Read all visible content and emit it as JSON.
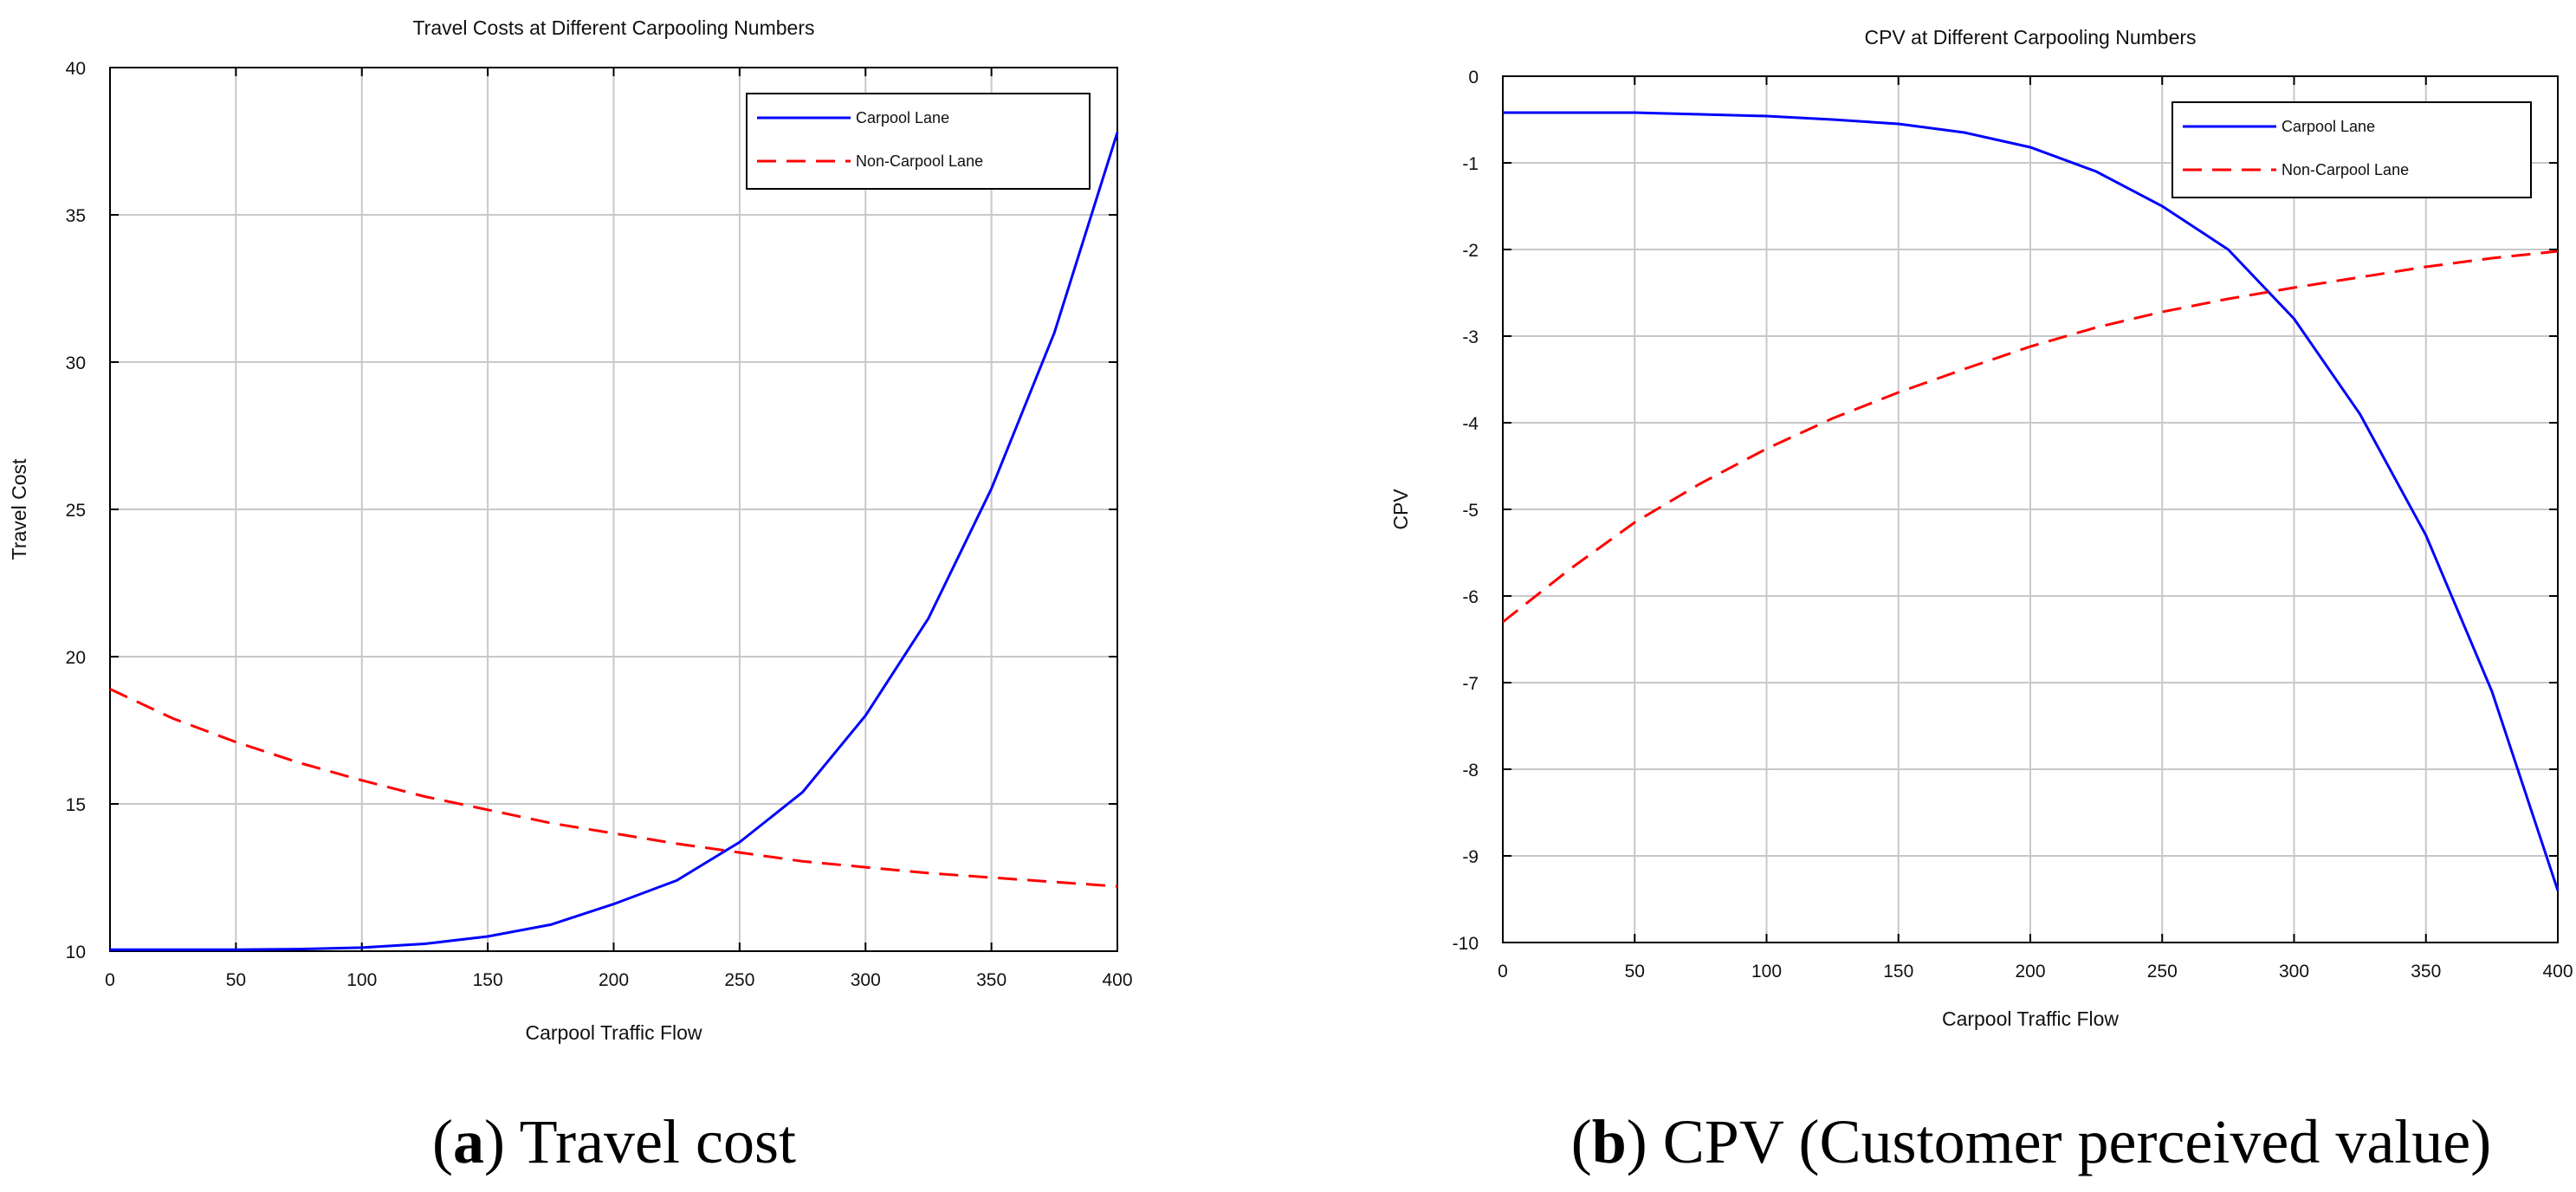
{
  "chart_data": [
    {
      "type": "line",
      "title": "Travel Costs at Different Carpooling Numbers",
      "xlabel": "Carpool Traffic Flow",
      "ylabel": "Travel Cost",
      "xlim": [
        0,
        400
      ],
      "ylim": [
        10,
        40
      ],
      "xticks": [
        0,
        50,
        100,
        150,
        200,
        250,
        300,
        350,
        400
      ],
      "yticks": [
        10,
        15,
        20,
        25,
        30,
        35,
        40
      ],
      "grid": true,
      "legend_position": "top-right",
      "x": [
        0,
        25,
        50,
        75,
        100,
        125,
        150,
        175,
        200,
        225,
        250,
        275,
        300,
        325,
        350,
        375,
        400
      ],
      "series": [
        {
          "name": "Carpool Lane",
          "color": "#0000ff",
          "style": "solid",
          "values": [
            10.05,
            10.05,
            10.05,
            10.07,
            10.12,
            10.25,
            10.5,
            10.9,
            11.6,
            12.4,
            13.7,
            15.4,
            18.0,
            21.3,
            25.7,
            31.0,
            37.8
          ]
        },
        {
          "name": "Non-Carpool Lane",
          "color": "#ff0000",
          "style": "dashed",
          "values": [
            18.9,
            17.9,
            17.1,
            16.4,
            15.8,
            15.25,
            14.8,
            14.35,
            14.0,
            13.65,
            13.35,
            13.05,
            12.85,
            12.65,
            12.5,
            12.35,
            12.2
          ]
        }
      ],
      "caption_letter": "a",
      "caption_text": " Travel cost"
    },
    {
      "type": "line",
      "title": "CPV at Different Carpooling Numbers",
      "xlabel": "Carpool Traffic Flow",
      "ylabel": "CPV",
      "xlim": [
        0,
        400
      ],
      "ylim": [
        -10,
        0
      ],
      "xticks": [
        0,
        50,
        100,
        150,
        200,
        250,
        300,
        350,
        400
      ],
      "yticks": [
        -10,
        -9,
        -8,
        -7,
        -6,
        -5,
        -4,
        -3,
        -2,
        -1,
        0
      ],
      "grid": true,
      "legend_position": "top-right",
      "x": [
        0,
        25,
        50,
        75,
        100,
        125,
        150,
        175,
        200,
        225,
        250,
        275,
        300,
        325,
        350,
        375,
        400
      ],
      "series": [
        {
          "name": "Carpool Lane",
          "color": "#0000ff",
          "style": "solid",
          "values": [
            -0.42,
            -0.42,
            -0.42,
            -0.44,
            -0.46,
            -0.5,
            -0.55,
            -0.65,
            -0.82,
            -1.1,
            -1.5,
            -2.0,
            -2.8,
            -3.9,
            -5.3,
            -7.1,
            -9.4
          ]
        },
        {
          "name": "Non-Carpool Lane",
          "color": "#ff0000",
          "style": "dashed",
          "values": [
            -6.3,
            -5.7,
            -5.15,
            -4.7,
            -4.3,
            -3.95,
            -3.65,
            -3.38,
            -3.12,
            -2.9,
            -2.72,
            -2.57,
            -2.44,
            -2.32,
            -2.2,
            -2.1,
            -2.02
          ]
        }
      ],
      "caption_letter": "b",
      "caption_text": " CPV (Customer perceived value)"
    }
  ]
}
